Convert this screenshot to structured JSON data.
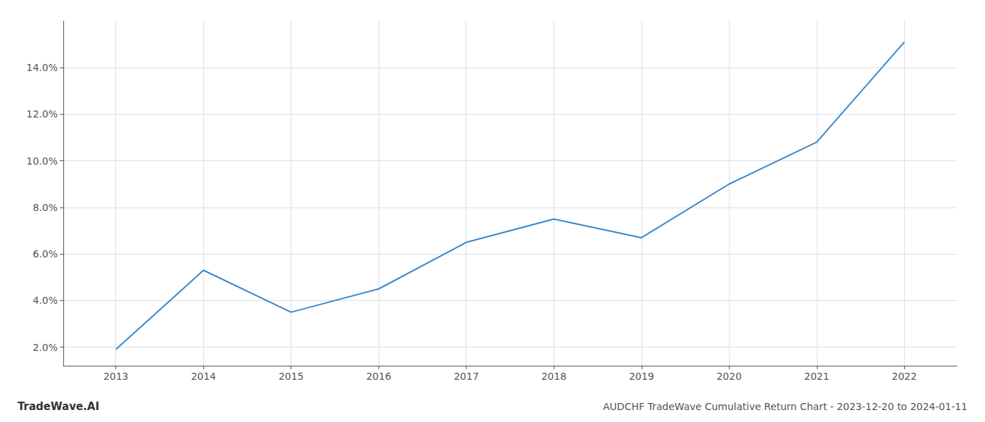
{
  "chart_data": {
    "type": "line",
    "title": "AUDCHF TradeWave Cumulative Return Chart - 2023-12-20 to 2024-01-11",
    "annotations": [
      "TradeWave.AI"
    ],
    "x": [
      2013,
      2014,
      2015,
      2016,
      2017,
      2018,
      2019,
      2020,
      2021,
      2022
    ],
    "values": [
      1.9,
      5.3,
      3.5,
      4.5,
      6.5,
      7.5,
      6.7,
      9.0,
      10.8,
      15.1
    ],
    "color": "#3a87c8",
    "xlim": [
      2012.4,
      2022.6
    ],
    "xticks": [
      2013,
      2014,
      2015,
      2016,
      2017,
      2018,
      2019,
      2020,
      2021,
      2022
    ],
    "ylim": [
      1.2,
      16.0
    ],
    "yticks": [
      {
        "value": 2.0,
        "label": "2.0%"
      },
      {
        "value": 4.0,
        "label": "4.0%"
      },
      {
        "value": 6.0,
        "label": "6.0%"
      },
      {
        "value": 8.0,
        "label": "8.0%"
      },
      {
        "value": 10.0,
        "label": "10.0%"
      },
      {
        "value": 12.0,
        "label": "12.0%"
      },
      {
        "value": 14.0,
        "label": "14.0%"
      }
    ],
    "grid": true
  }
}
